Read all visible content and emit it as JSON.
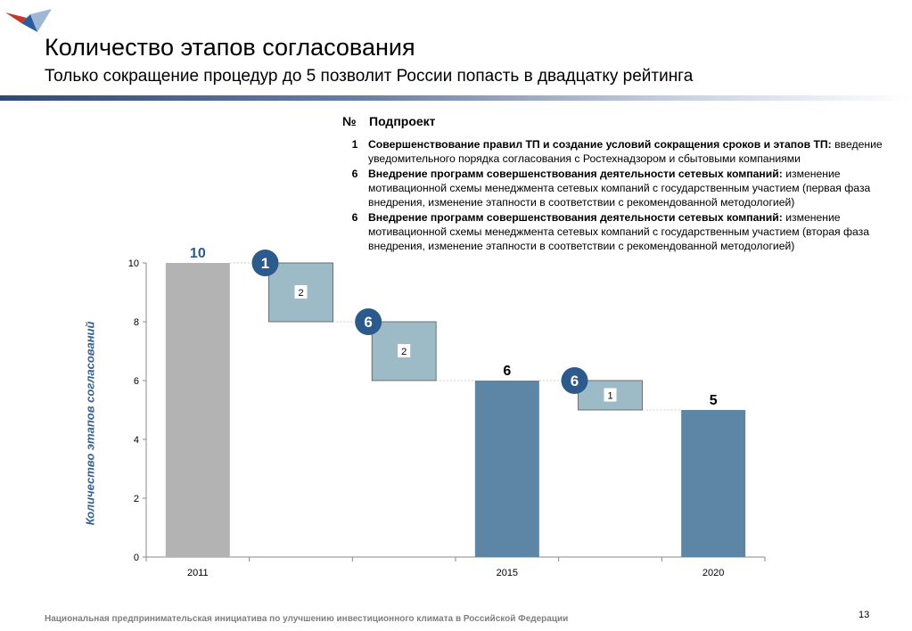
{
  "header": {
    "title": "Количество этапов согласования",
    "subtitle": "Только сокращение процедур до 5 позволит России попасть в двадцатку рейтинга"
  },
  "table": {
    "col_num": "№",
    "col_project": "Подпроект",
    "rows": [
      {
        "num": "1",
        "bold": "Совершенствование правил ТП и создание условий сокращения сроков и этапов ТП:",
        "text": " введение уведомительного порядка согласования с Ростехнадзором и сбытовыми компаниями"
      },
      {
        "num": "6",
        "bold": "Внедрение программ совершенствования деятельности  сетевых компаний:",
        "text": " изменение мотивационной схемы менеджмента сетевых компаний с государственным участием (первая фаза внедрения, изменение этапности в соответствии с рекомендованной методологией)"
      },
      {
        "num": "6",
        "bold": "Внедрение программ совершенствования деятельности  сетевых компаний:",
        "text": " изменение мотивационной схемы менеджмента сетевых компаний с государственным участием (вторая фаза внедрения, изменение этапности в соответствии с рекомендованной методологией)"
      }
    ]
  },
  "chart_data": {
    "type": "bar",
    "subtype": "waterfall",
    "ylabel": "Количество этапов  согласований",
    "ylim": [
      0,
      10
    ],
    "yticks": [
      0,
      2,
      4,
      6,
      8,
      10
    ],
    "categories": [
      "2011",
      "",
      "",
      "2015",
      "",
      "2020"
    ],
    "bars": [
      {
        "kind": "total",
        "base": 0,
        "value": 10,
        "label": "10",
        "color": "#b3b3b3"
      },
      {
        "kind": "delta",
        "base": 8,
        "value": 2,
        "label": "2",
        "badge": "1",
        "color": "#9dbbc7"
      },
      {
        "kind": "delta",
        "base": 6,
        "value": 2,
        "label": "2",
        "badge": "6",
        "color": "#9dbbc7"
      },
      {
        "kind": "total",
        "base": 0,
        "value": 6,
        "label": "6",
        "color": "#5d86a6"
      },
      {
        "kind": "delta",
        "base": 5,
        "value": 1,
        "label": "1",
        "badge": "6",
        "color": "#9dbbc7"
      },
      {
        "kind": "total",
        "base": 0,
        "value": 5,
        "label": "5",
        "color": "#5d86a6"
      }
    ],
    "colors": {
      "badge": "#2d5a8c",
      "axis_label": "#365f91"
    }
  },
  "footer": {
    "text": "Национальная предпринимательская инициатива по улучшению инвестиционного климата в Российской Федерации",
    "page": "13"
  }
}
